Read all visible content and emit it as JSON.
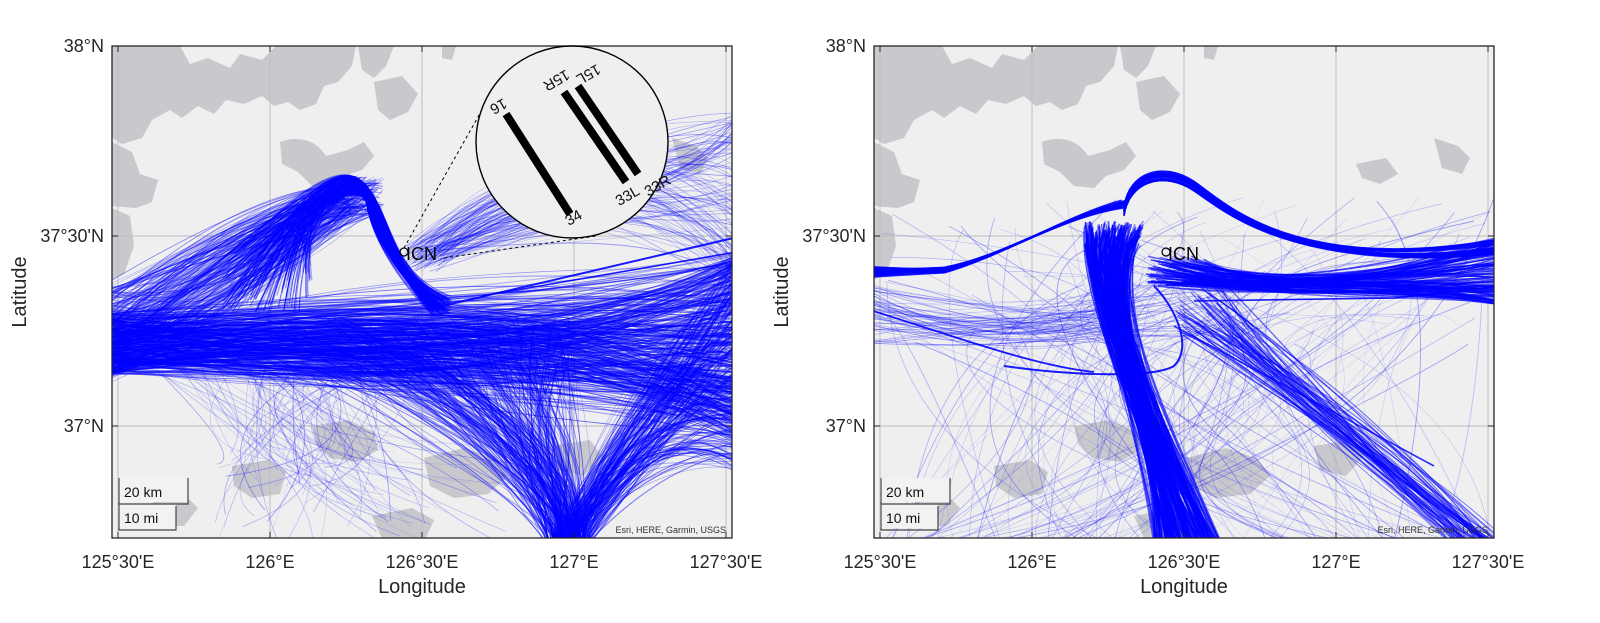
{
  "panels": [
    {
      "id": "left",
      "xlabel": "Longitude",
      "ylabel": "Latitude",
      "xticks": [
        "125°30'E",
        "126°E",
        "126°30'E",
        "127°E",
        "127°30'E"
      ],
      "yticks": [
        "38°N",
        "37°30'N",
        "37°N"
      ],
      "airport_label": "ICN",
      "attribution": "Esri, HERE, Garmin, USGS",
      "scale_km": "20 km",
      "scale_mi": "10 mi",
      "inset_runways": [
        "16",
        "34",
        "15R",
        "33L",
        "15L",
        "33R"
      ]
    },
    {
      "id": "right",
      "xlabel": "Longitude",
      "ylabel": "Latitude",
      "xticks": [
        "125°30'E",
        "126°E",
        "126°30'E",
        "127°E",
        "127°30'E"
      ],
      "yticks": [
        "38°N",
        "37°30'N",
        "37°N"
      ],
      "airport_label": "ICN",
      "attribution": "Esri, HERE, Garmin, USGS",
      "scale_km": "20 km",
      "scale_mi": "10 mi"
    }
  ],
  "colors": {
    "track": "#0000ff",
    "land": "#efefef",
    "water": "#c9c9cd",
    "grid": "#bdbdbd",
    "frame": "#262626"
  },
  "map_extent": {
    "lon": [
      125.48,
      127.53
    ],
    "lat": [
      36.7,
      38.0
    ]
  }
}
